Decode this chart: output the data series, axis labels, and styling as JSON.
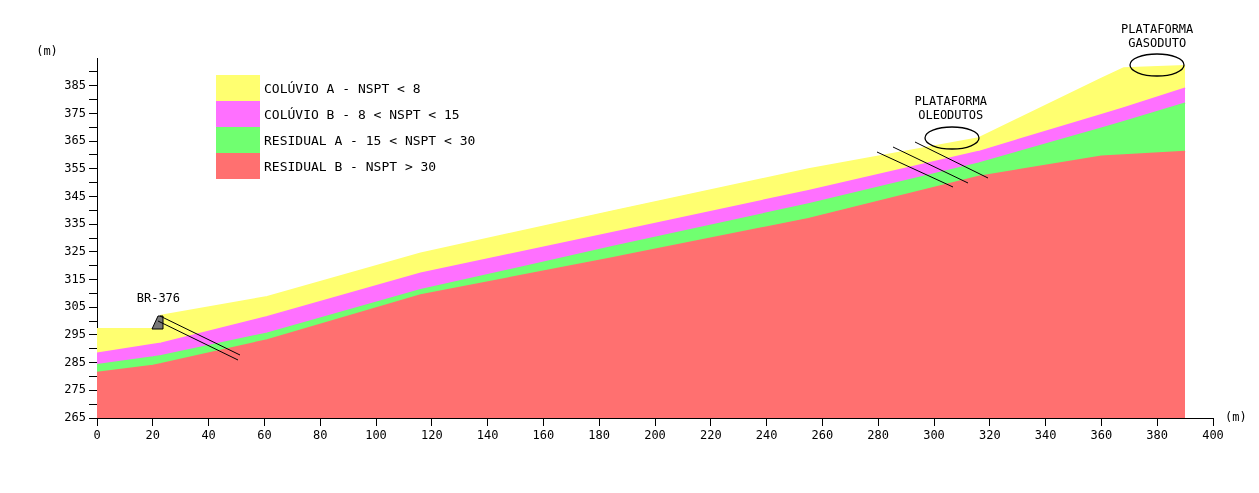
{
  "chart_data": {
    "type": "area",
    "x": [
      0,
      20,
      23,
      61,
      116,
      185,
      255,
      316,
      360,
      368,
      390
    ],
    "series": [
      {
        "name": "RESIDUAL B - NSPT > 30",
        "color": "#ff7070",
        "values": [
          281.4,
          284,
          284.6,
          293.2,
          309.4,
          322.9,
          337,
          352.2,
          359.5,
          360,
          361.2
        ]
      },
      {
        "name": "RESIDUAL A - 15 < NSPT < 30",
        "color": "#70ff70",
        "values": [
          284.2,
          287,
          287.5,
          295.6,
          311.3,
          326.9,
          342.3,
          357,
          369.6,
          372,
          378.7
        ]
      },
      {
        "name": "COLÚVIO B - 8 < NSPT < 15",
        "color": "#ff70ff",
        "values": [
          288.4,
          291.5,
          292,
          301.6,
          317.3,
          332,
          347.1,
          361.2,
          374.5,
          377,
          384.1
        ]
      },
      {
        "name": "COLÚVIO A - NSPT < 8",
        "color": "#ffff70",
        "values": [
          297.2,
          297.2,
          302,
          308.8,
          324.5,
          339.8,
          354.9,
          366.1,
          387.6,
          391.4,
          392.2
        ]
      }
    ],
    "xlim": [
      0,
      400
    ],
    "xticks": [
      0,
      20,
      40,
      60,
      80,
      100,
      120,
      140,
      160,
      180,
      200,
      220,
      240,
      260,
      280,
      300,
      320,
      340,
      360,
      380,
      400
    ],
    "ylim": [
      265,
      395
    ],
    "yticks": [
      265,
      {
        "value": 270,
        "label": null
      },
      275,
      {
        "value": 280,
        "label": null
      },
      285,
      {
        "value": 290,
        "label": null
      },
      295,
      {
        "value": 300,
        "label": null
      },
      305,
      {
        "value": 310,
        "label": null
      },
      315,
      {
        "value": 320,
        "label": null
      },
      325,
      {
        "value": 330,
        "label": null
      },
      335,
      {
        "value": 340,
        "label": null
      },
      345,
      {
        "value": 350,
        "label": null
      },
      355,
      {
        "value": 360,
        "label": null
      },
      365,
      {
        "value": 370,
        "label": null
      },
      375,
      {
        "value": 380,
        "label": null
      },
      385,
      {
        "value": 390,
        "label": null
      }
    ],
    "xlabel": "(m)",
    "ylabel": "(m)",
    "legend": "top left",
    "annotations": [
      {
        "text": "BR-376",
        "x": 22,
        "y": 300
      },
      {
        "text": "PLATAFORMA\nOLEODUTOS",
        "x": 306,
        "y": 366
      },
      {
        "text": "PLATAFORMA\nGASODUTO",
        "x": 380,
        "y": 392
      }
    ]
  }
}
